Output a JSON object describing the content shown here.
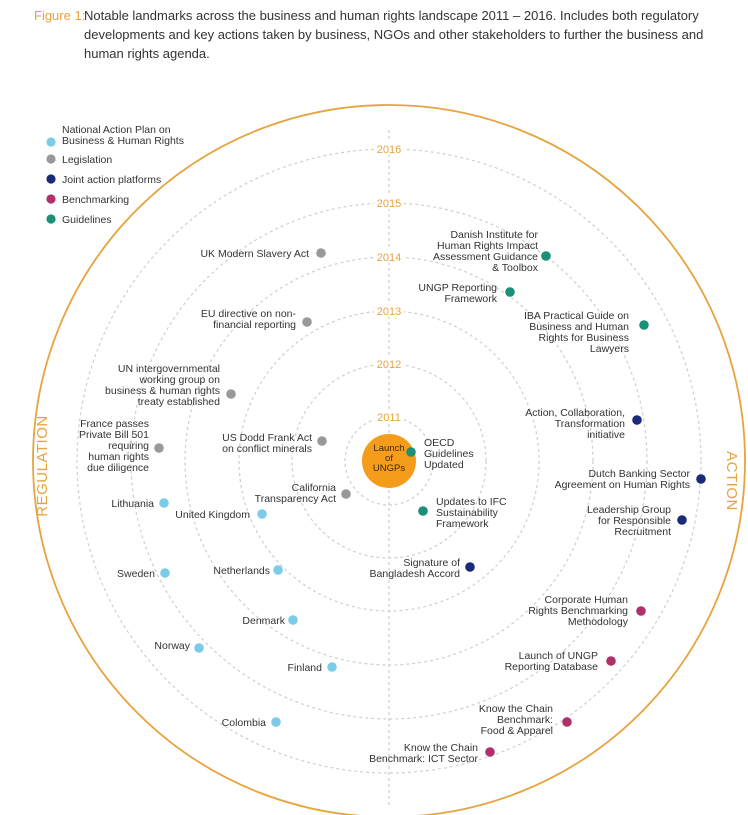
{
  "caption": {
    "label": "Figure 1:",
    "text": "Notable landmarks across the business and human rights landscape 2011 – 2016. Includes both regulatory developments and key actions taken by business, NGOs and other stakeholders to further the business and human rights agenda."
  },
  "legend": [
    {
      "key": "nap",
      "lines": [
        "National Action Plan on",
        "Business & Human Rights"
      ],
      "color": "#7ccbe8"
    },
    {
      "key": "leg",
      "lines": [
        "Legislation"
      ],
      "color": "#999999"
    },
    {
      "key": "joint",
      "lines": [
        "Joint action platforms"
      ],
      "color": "#1b2a78"
    },
    {
      "key": "bench",
      "lines": [
        "Benchmarking"
      ],
      "color": "#b0306b"
    },
    {
      "key": "guide",
      "lines": [
        "Guidelines"
      ],
      "color": "#1a8f79"
    }
  ],
  "years": [
    "2011",
    "2012",
    "2013",
    "2014",
    "2015",
    "2016"
  ],
  "center_label": [
    "Launch",
    "of",
    "UNGPs"
  ],
  "side_labels": {
    "left": "REGULATION",
    "right": "ACTION"
  },
  "colors": {
    "accent": "#e7a33e",
    "center": "#f59c1a",
    "rings": "#cfcfcf"
  },
  "items": [
    {
      "cat": "leg",
      "lines": [
        "UK Modern Slavery Act"
      ]
    },
    {
      "cat": "leg",
      "lines": [
        "EU directive on non-",
        "financial reporting"
      ]
    },
    {
      "cat": "leg",
      "lines": [
        "UN intergovernmental",
        "working group on",
        "business & human rights",
        "treaty established"
      ]
    },
    {
      "cat": "leg",
      "lines": [
        "France passes",
        "Private Bill 501",
        "requiring",
        "human rights",
        "due diligence"
      ]
    },
    {
      "cat": "leg",
      "lines": [
        "US Dodd Frank Act",
        "on conflict minerals"
      ]
    },
    {
      "cat": "leg",
      "lines": [
        "California",
        "Transparency Act"
      ]
    },
    {
      "cat": "nap",
      "lines": [
        "Lithuania"
      ]
    },
    {
      "cat": "nap",
      "lines": [
        "United Kingdom"
      ]
    },
    {
      "cat": "nap",
      "lines": [
        "Sweden"
      ]
    },
    {
      "cat": "nap",
      "lines": [
        "Netherlands"
      ]
    },
    {
      "cat": "nap",
      "lines": [
        "Denmark"
      ]
    },
    {
      "cat": "nap",
      "lines": [
        "Norway"
      ]
    },
    {
      "cat": "nap",
      "lines": [
        "Finland"
      ]
    },
    {
      "cat": "nap",
      "lines": [
        "Colombia"
      ]
    },
    {
      "cat": "guide",
      "lines": [
        "Danish Institute for",
        "Human Rights Impact",
        "Assessment Guidance",
        "& Toolbox"
      ]
    },
    {
      "cat": "guide",
      "lines": [
        "UNGP Reporting",
        "Framework"
      ]
    },
    {
      "cat": "guide",
      "lines": [
        "IBA Practical Guide on",
        "Business and Human",
        "Rights for Business",
        "Lawyers"
      ]
    },
    {
      "cat": "guide",
      "lines": [
        "OECD",
        "Guidelines",
        "Updated"
      ]
    },
    {
      "cat": "guide",
      "lines": [
        "Updates to IFC",
        "Sustainability",
        "Framework"
      ]
    },
    {
      "cat": "joint",
      "lines": [
        "Action, Collaboration,",
        "Transformation",
        "initiative"
      ]
    },
    {
      "cat": "joint",
      "lines": [
        "Dutch Banking Sector",
        "Agreement on Human Rights"
      ]
    },
    {
      "cat": "joint",
      "lines": [
        "Leadership Group",
        "for Responsible",
        "Recruitment"
      ]
    },
    {
      "cat": "joint",
      "lines": [
        "Signature of",
        "Bangladesh Accord"
      ]
    },
    {
      "cat": "bench",
      "lines": [
        "Corporate Human",
        "Rights Benchmarking",
        "Methodology"
      ]
    },
    {
      "cat": "bench",
      "lines": [
        "Launch of UNGP",
        "Reporting Database"
      ]
    },
    {
      "cat": "bench",
      "lines": [
        "Know the Chain",
        "Benchmark:",
        "Food & Apparel"
      ]
    },
    {
      "cat": "bench",
      "lines": [
        "Know the Chain",
        "Benchmark: ICT Sector"
      ]
    }
  ]
}
